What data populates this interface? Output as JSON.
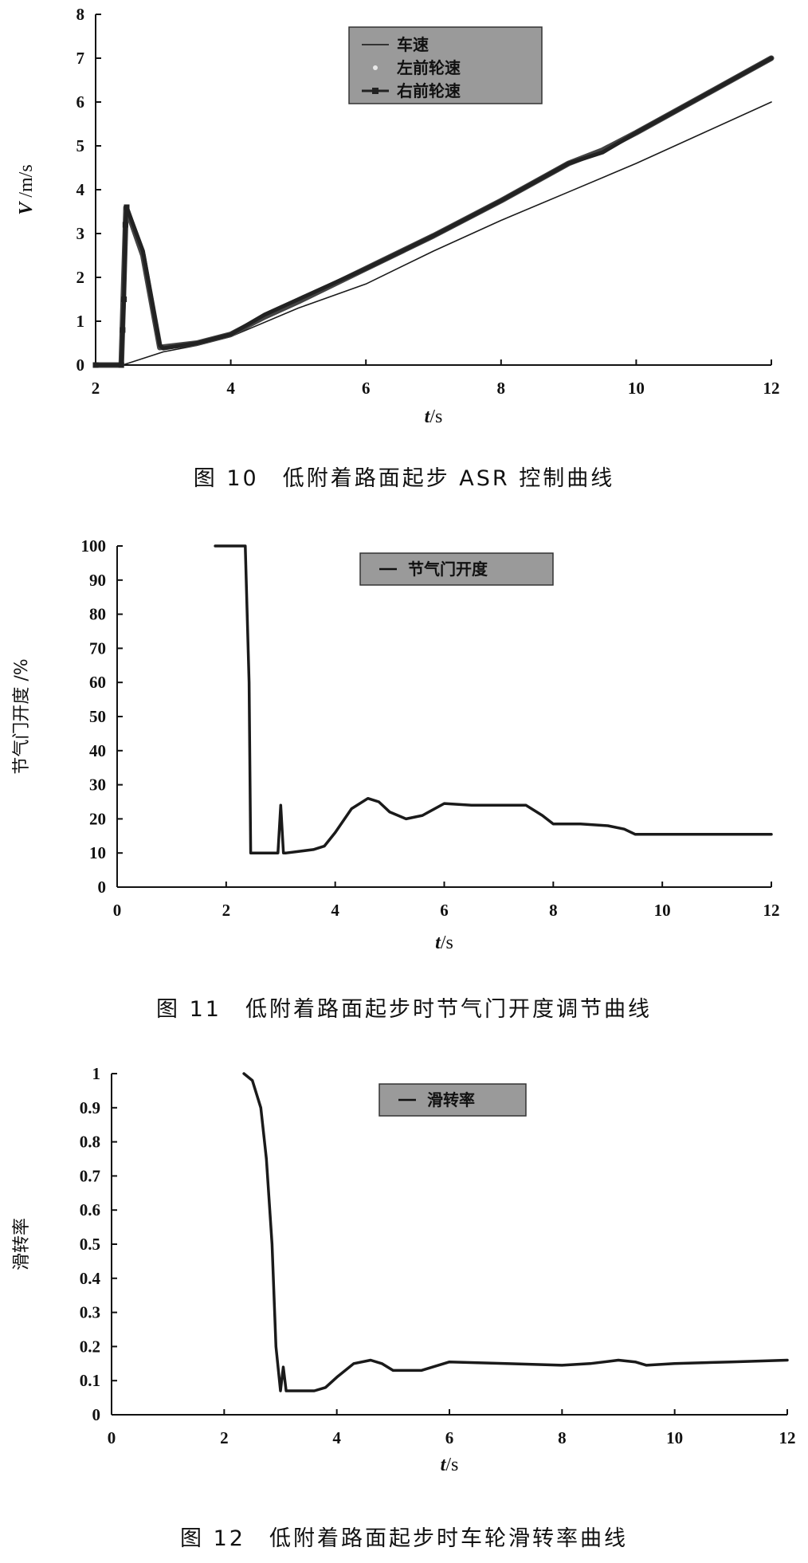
{
  "charts": [
    {
      "caption": "图 10　低附着路面起步 ASR 控制曲线",
      "chart_data": {
        "type": "line",
        "xlabel_italic": "t",
        "xlabel_unit": "/s",
        "ylabel_italic": "V",
        "ylabel_unit": " /m/s",
        "xlim": [
          2,
          12
        ],
        "ylim": [
          0,
          8
        ],
        "xticks": [
          2,
          4,
          6,
          8,
          10,
          12
        ],
        "yticks": [
          0,
          1,
          2,
          3,
          4,
          5,
          6,
          7,
          8
        ],
        "legend": "top-center",
        "series": [
          {
            "name": "车速",
            "style": "thin",
            "x": [
              2,
              2.4,
              3.0,
              3.5,
              4.0,
              5.0,
              6.0,
              7.0,
              8.0,
              9.0,
              10.0,
              11.0,
              12.0
            ],
            "y": [
              0,
              0,
              0.3,
              0.45,
              0.65,
              1.3,
              1.85,
              2.6,
              3.3,
              3.95,
              4.6,
              5.3,
              6.0
            ]
          },
          {
            "name": "左前轮速",
            "style": "light",
            "x": [
              2,
              2.38,
              2.45,
              2.7,
              2.95,
              3.5,
              4.0,
              4.5,
              5.0,
              6.0,
              7.0,
              8.0,
              9.0,
              9.5,
              10.0,
              11.0,
              12.0
            ],
            "y": [
              0,
              0,
              3.6,
              2.5,
              0.4,
              0.5,
              0.7,
              1.1,
              1.45,
              2.2,
              2.95,
              3.75,
              4.6,
              4.9,
              5.3,
              6.15,
              7.0
            ]
          },
          {
            "name": "右前轮速",
            "style": "marker",
            "x": [
              2,
              2.38,
              2.4,
              2.42,
              2.44,
              2.46,
              2.7,
              2.95,
              3.0,
              3.5,
              4.0,
              4.5,
              5.0,
              6.0,
              7.0,
              8.0,
              9.0,
              9.5,
              10.0,
              11.0,
              12.0
            ],
            "y": [
              0,
              0,
              0.8,
              1.5,
              3.2,
              3.6,
              2.6,
              0.45,
              0.38,
              0.5,
              0.7,
              1.15,
              1.5,
              2.2,
              2.95,
              3.75,
              4.6,
              4.85,
              5.3,
              6.15,
              7.0
            ]
          }
        ]
      }
    },
    {
      "caption": "图 11　低附着路面起步时节气门开度调节曲线",
      "chart_data": {
        "type": "line",
        "xlabel_italic": "t",
        "xlabel_unit": "/s",
        "ylabel": "节气门开度 /%",
        "xlim": [
          0,
          12
        ],
        "ylim": [
          0,
          100
        ],
        "xticks": [
          0,
          2,
          4,
          6,
          8,
          10,
          12
        ],
        "yticks": [
          0,
          10,
          20,
          30,
          40,
          50,
          60,
          70,
          80,
          90,
          100
        ],
        "legend": "top-center",
        "series": [
          {
            "name": "节气门开度",
            "x": [
              1.8,
              2.35,
              2.42,
              2.45,
              2.95,
              3.0,
              3.05,
              3.1,
              3.6,
              3.8,
              4.0,
              4.3,
              4.6,
              4.8,
              5.0,
              5.3,
              5.6,
              6.0,
              6.5,
              7.0,
              7.5,
              7.8,
              8.0,
              8.5,
              9.0,
              9.3,
              9.5,
              10.0,
              11.0,
              12.0
            ],
            "y": [
              100,
              100,
              60,
              10,
              10,
              24,
              10,
              10,
              11,
              12,
              16,
              23,
              26,
              25,
              22,
              20,
              21,
              24.5,
              24,
              24,
              24,
              21,
              18.5,
              18.5,
              18,
              17,
              15.5,
              15.5,
              15.5,
              15.5
            ]
          }
        ]
      }
    },
    {
      "caption": "图 12　低附着路面起步时车轮滑转率曲线",
      "chart_data": {
        "type": "line",
        "xlabel_italic": "t",
        "xlabel_unit": "/s",
        "ylabel": "滑转率",
        "xlim": [
          0,
          12
        ],
        "ylim": [
          0,
          1
        ],
        "xticks": [
          0,
          2,
          4,
          6,
          8,
          10,
          12
        ],
        "yticks": [
          "0",
          "0.1",
          "0.2",
          "0.3",
          "0.4",
          "0.5",
          "0.6",
          "0.7",
          "0.8",
          "0.9",
          "1"
        ],
        "legend": "top-center",
        "series": [
          {
            "name": "滑转率",
            "x": [
              2.35,
              2.5,
              2.65,
              2.75,
              2.85,
              2.92,
              3.0,
              3.05,
              3.1,
              3.2,
              3.6,
              3.8,
              4.0,
              4.3,
              4.6,
              4.8,
              5.0,
              5.5,
              6.0,
              7.0,
              8.0,
              8.5,
              9.0,
              9.3,
              9.5,
              10.0,
              11.0,
              12.0
            ],
            "y": [
              1.0,
              0.98,
              0.9,
              0.75,
              0.5,
              0.2,
              0.07,
              0.14,
              0.07,
              0.07,
              0.07,
              0.08,
              0.11,
              0.15,
              0.16,
              0.15,
              0.13,
              0.13,
              0.155,
              0.15,
              0.145,
              0.15,
              0.16,
              0.155,
              0.145,
              0.15,
              0.155,
              0.16
            ]
          }
        ]
      }
    }
  ]
}
